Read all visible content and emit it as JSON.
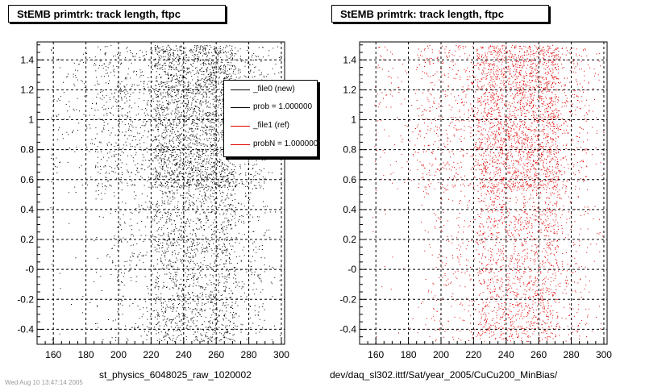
{
  "panels": [
    {
      "title": "StEMB primtrk: track length, ftpc",
      "footer": "st_physics_6048025_raw_1020002",
      "marker_color": "#000000"
    },
    {
      "title": "StEMB primtrk: track length, ftpc",
      "footer": "dev/daq_sl302.ittf/Sat/year_2005/CuCu200_MinBias/",
      "marker_color": "#e00000"
    }
  ],
  "legend": {
    "entries": [
      {
        "label": "_file0 (new)",
        "color": "#000000"
      },
      {
        "label": "prob = 1.000000",
        "color": "#000000"
      },
      {
        "label": "_file1 (ref)",
        "color": "#e00000"
      },
      {
        "label": "probN = 1.000000",
        "color": "#e00000"
      }
    ]
  },
  "corner_note": "Wed Aug 10 13:47:14 2005",
  "chart_data": [
    {
      "type": "scatter",
      "title": "StEMB primtrk: track length, ftpc",
      "xlabel": "st_physics_6048025_raw_1020002",
      "ylabel": "",
      "xlim": [
        150,
        302
      ],
      "ylim": [
        -0.5,
        1.52
      ],
      "xticks": [
        160,
        180,
        200,
        220,
        240,
        260,
        280,
        300
      ],
      "yticks": [
        -0.4,
        -0.2,
        0,
        0.2,
        0.4,
        0.6,
        0.8,
        1,
        1.2,
        1.4
      ],
      "ytick_labels": [
        "-0.4",
        "-0.2",
        "-0",
        "0.2",
        "0.4",
        "0.6",
        "0.8",
        "1",
        "1.2",
        "1.4"
      ],
      "grid": true,
      "series": [
        {
          "name": "_file0 (new)",
          "color": "#000000"
        }
      ]
    },
    {
      "type": "scatter",
      "title": "StEMB primtrk: track length, ftpc",
      "xlabel": "dev/daq_sl302.ittf/Sat/year_2005/CuCu200_MinBias/",
      "ylabel": "",
      "xlim": [
        150,
        302
      ],
      "ylim": [
        -0.5,
        1.52
      ],
      "xticks": [
        160,
        180,
        200,
        220,
        240,
        260,
        280,
        300
      ],
      "yticks": [
        -0.4,
        -0.2,
        0,
        0.2,
        0.4,
        0.6,
        0.8,
        1,
        1.2,
        1.4
      ],
      "ytick_labels": [
        "-0.4",
        "-0.2",
        "-0",
        "0.2",
        "0.4",
        "0.6",
        "0.8",
        "1",
        "1.2",
        "1.4"
      ],
      "grid": true,
      "series": [
        {
          "name": "_file1 (ref)",
          "color": "#e00000"
        }
      ]
    }
  ]
}
